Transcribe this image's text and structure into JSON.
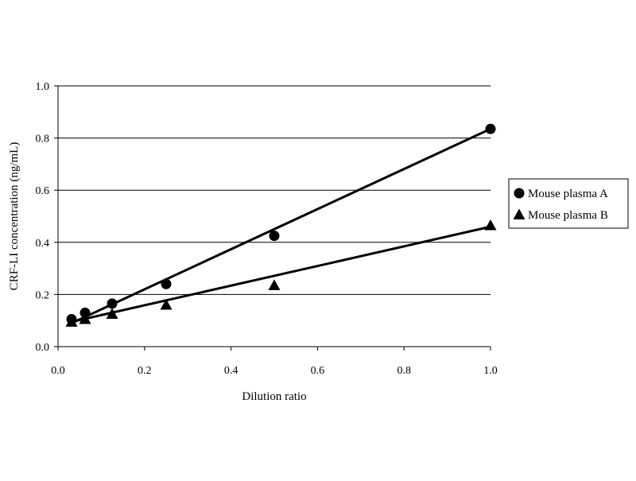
{
  "chart_data": {
    "type": "scatter",
    "title": "",
    "xlabel": "Dilution ratio",
    "ylabel": "CRF-LI concentration (ng/mL)",
    "xlim": [
      0.0,
      1.0
    ],
    "ylim": [
      0.0,
      1.0
    ],
    "x_ticks": [
      "0.0",
      "0.2",
      "0.4",
      "0.6",
      "0.8",
      "1.0"
    ],
    "y_ticks": [
      "0.0",
      "0.2",
      "0.4",
      "0.6",
      "0.8",
      "1.0"
    ],
    "grid": "horizontal",
    "legend_position": "right",
    "series": [
      {
        "name": "Mouse plasma A",
        "marker": "circle",
        "color": "#000000",
        "x": [
          0.03125,
          0.0625,
          0.125,
          0.25,
          0.5,
          1.0
        ],
        "y": [
          0.105,
          0.13,
          0.165,
          0.24,
          0.425,
          0.835
        ],
        "trendline": [
          [
            0.03125,
            0.09
          ],
          [
            1.0,
            0.835
          ]
        ]
      },
      {
        "name": "Mouse plasma B",
        "marker": "triangle",
        "color": "#000000",
        "x": [
          0.03125,
          0.0625,
          0.125,
          0.25,
          0.5,
          1.0
        ],
        "y": [
          0.095,
          0.105,
          0.125,
          0.16,
          0.235,
          0.465
        ],
        "trendline": [
          [
            0.03125,
            0.095
          ],
          [
            1.0,
            0.46
          ]
        ]
      }
    ]
  }
}
